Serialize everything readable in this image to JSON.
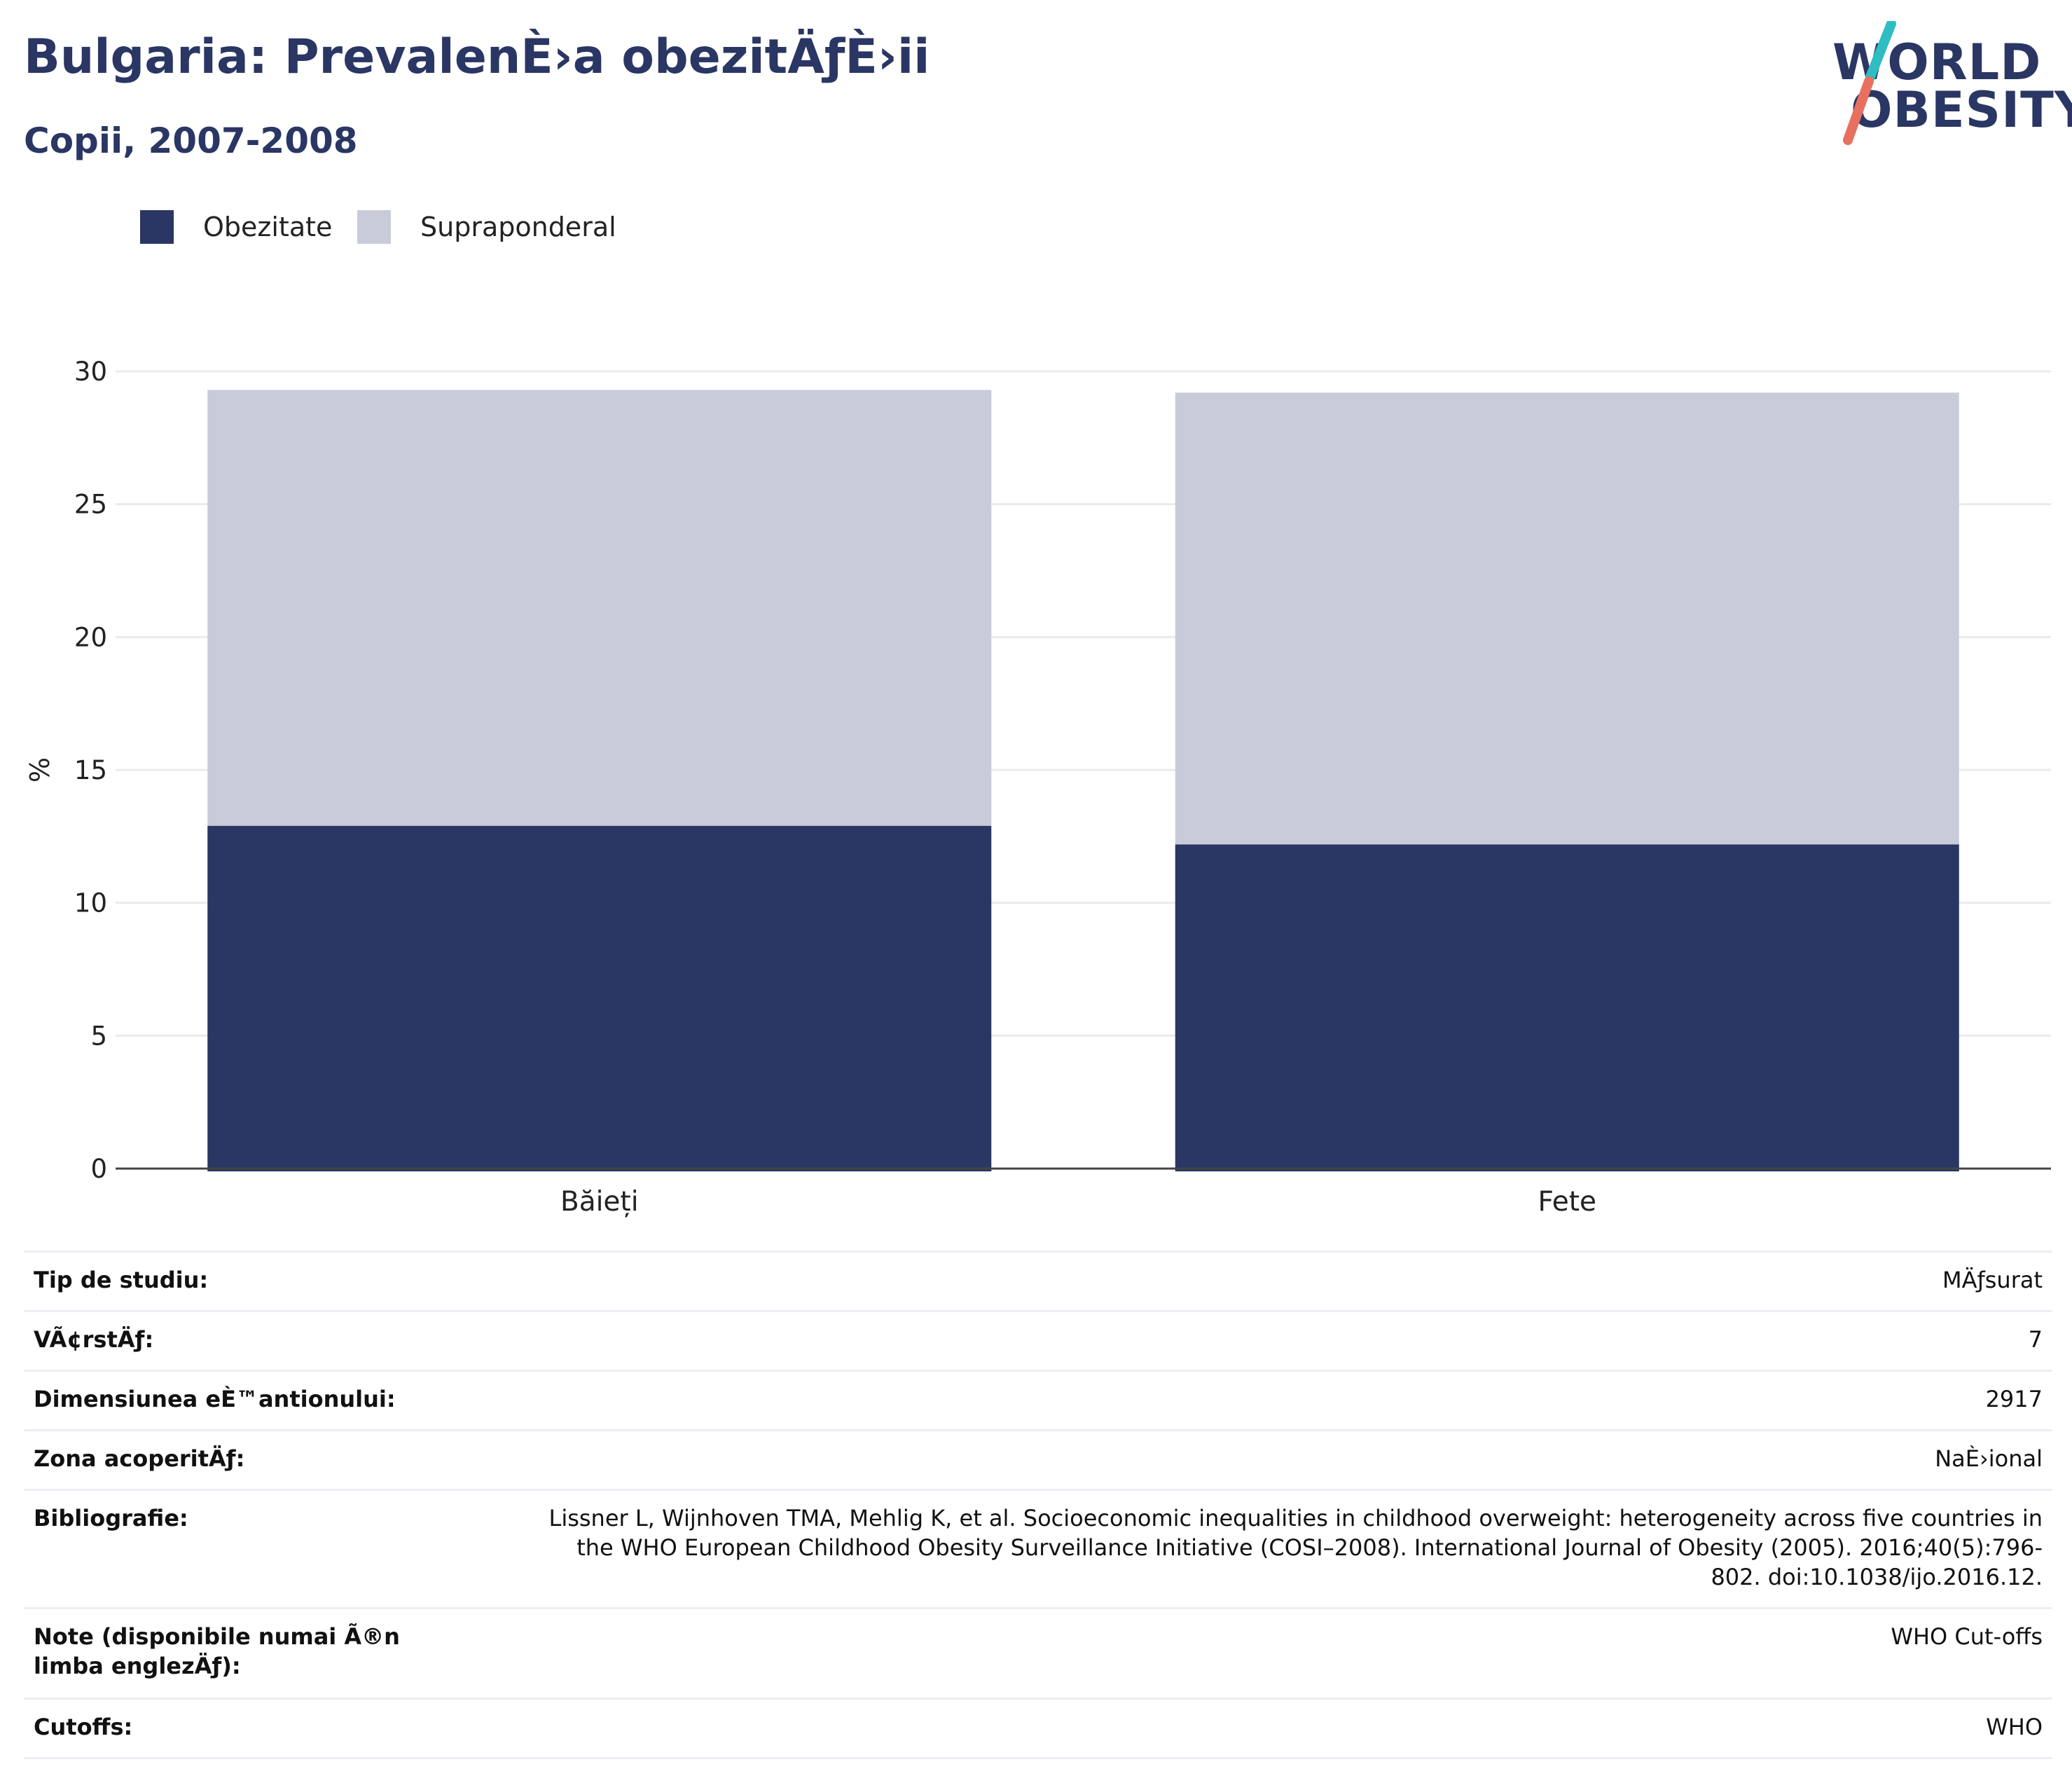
{
  "header": {
    "title": "Bulgaria: PrevalenÈ›a obezitÄƒÈ›ii",
    "subtitle": "Copii, 2007-2008"
  },
  "logo": {
    "line1": "WORLD",
    "line2": "OBESITY"
  },
  "colors": {
    "obesity": "#2a3663",
    "overweight": "#c9ccd8",
    "title": "#2a3663",
    "logo_teal": "#2ebdc1",
    "logo_coral": "#e8705f"
  },
  "chart_data": {
    "type": "bar",
    "stacked": true,
    "categories": [
      "Băieți",
      "Fete"
    ],
    "series": [
      {
        "name": "Obezitate",
        "values": [
          12.9,
          12.2
        ]
      },
      {
        "name": "Supraponderal",
        "values": [
          16.4,
          17.0
        ]
      }
    ],
    "xlabel": "",
    "ylabel": "%",
    "ylim": [
      0,
      30
    ],
    "yticks": [
      "0",
      "5",
      "10",
      "15",
      "20",
      "25",
      "30"
    ],
    "grid": true,
    "legend_position": "top-left"
  },
  "info": [
    {
      "label": "Tip de studiu:",
      "value": "MÄƒsurat"
    },
    {
      "label": "VÃ¢rstÄƒ:",
      "value": "7"
    },
    {
      "label": "Dimensiunea eÈ™antionului:",
      "value": "2917"
    },
    {
      "label": "Zona acoperitÄƒ:",
      "value": "NaÈ›ional"
    },
    {
      "label": "Bibliografie:",
      "value": "Lissner L, Wijnhoven TMA, Mehlig K, et al. Socioeconomic inequalities in childhood overweight: heterogeneity across five countries in the WHO European Childhood Obesity Surveillance Initiative (COSI–2008). International Journal of Obesity (2005). 2016;40(5):796-802. doi:10.1038/ijo.2016.12."
    },
    {
      "label": "Note (disponibile numai Ã®n limba englezÄƒ):",
      "value": "WHO Cut-offs"
    },
    {
      "label": "Cutoffs:",
      "value": "WHO"
    }
  ]
}
